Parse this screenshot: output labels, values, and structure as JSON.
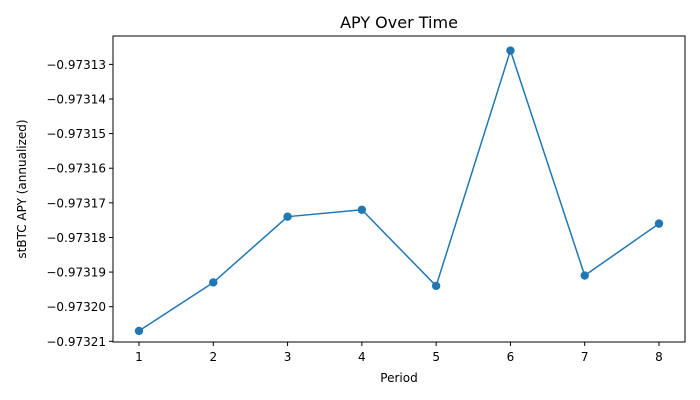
{
  "chart_data": {
    "type": "line",
    "title": "APY Over Time",
    "xlabel": "Period",
    "ylabel": "stBTC APY (annualized)",
    "x": [
      1,
      2,
      3,
      4,
      5,
      6,
      7,
      8
    ],
    "series": [
      {
        "color": "#1f77b4",
        "marker": "circle",
        "values": [
          -0.973207,
          -0.973193,
          -0.973174,
          -0.973172,
          -0.973194,
          -0.973126,
          -0.973191,
          -0.973176
        ]
      }
    ],
    "xlim": [
      0.65,
      8.35
    ],
    "ylim": [
      -0.9732102,
      -0.9731218
    ],
    "xticks": [
      1,
      2,
      3,
      4,
      5,
      6,
      7,
      8
    ],
    "xtick_labels": [
      "1",
      "2",
      "3",
      "4",
      "5",
      "6",
      "7",
      "8"
    ],
    "yticks": [
      -0.97321,
      -0.9732,
      -0.97319,
      -0.97318,
      -0.97317,
      -0.97316,
      -0.97315,
      -0.97314,
      -0.97313
    ],
    "ytick_labels": [
      "−0.97321",
      "−0.97320",
      "−0.97319",
      "−0.97318",
      "−0.97317",
      "−0.97316",
      "−0.97315",
      "−0.97314",
      "−0.97313"
    ],
    "grid": false,
    "legend": "none"
  }
}
